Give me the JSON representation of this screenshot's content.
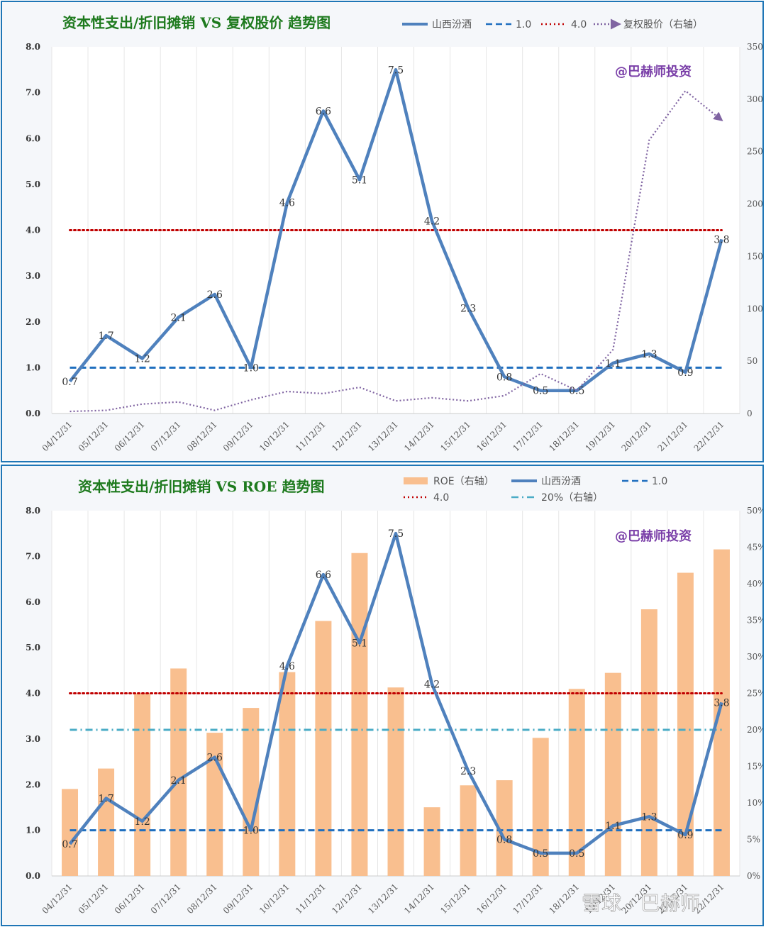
{
  "corner_watermark": "雪球 · 巴赫师",
  "chart_data": [
    {
      "type": "line",
      "title": "资本性支出/折旧摊销 VS 复权股价 趋势图",
      "watermark": "@巴赫师投资",
      "categories": [
        "04/12/31",
        "05/12/31",
        "06/12/31",
        "07/12/31",
        "08/12/31",
        "09/12/31",
        "10/12/31",
        "11/12/31",
        "12/12/31",
        "13/12/31",
        "14/12/31",
        "15/12/31",
        "16/12/31",
        "17/12/31",
        "18/12/31",
        "19/12/31",
        "20/12/31",
        "21/12/31",
        "22/12/31"
      ],
      "ylim": [
        0,
        8
      ],
      "y_ticks": [
        "0.0",
        "1.0",
        "2.0",
        "3.0",
        "4.0",
        "5.0",
        "6.0",
        "7.0",
        "8.0"
      ],
      "y2lim": [
        0,
        350
      ],
      "y2_ticks": [
        "0",
        "50",
        "100",
        "150",
        "200",
        "250",
        "300",
        "350"
      ],
      "grid": "vertical",
      "legend_position": "top",
      "series": [
        {
          "name": "山西汾酒",
          "axis": "left",
          "style": "solid",
          "color": "#4f81bd",
          "values": [
            0.7,
            1.7,
            1.2,
            2.1,
            2.6,
            1.0,
            4.6,
            6.6,
            5.1,
            7.5,
            4.2,
            2.3,
            0.8,
            0.5,
            0.5,
            1.1,
            1.3,
            0.9,
            3.8
          ],
          "labels": [
            "0.7",
            "1.7",
            "1.2",
            "2.1",
            "2.6",
            "1.0",
            "4.6",
            "6.6",
            "5.1",
            "7.5",
            "4.2",
            "2.3",
            "0.8",
            "0.5",
            "0.5",
            "1.1",
            "1.3",
            "0.9",
            "3.8"
          ]
        },
        {
          "name": "1.0",
          "axis": "left",
          "style": "dashed",
          "color": "#1f6fbf",
          "constant": 1.0
        },
        {
          "name": "4.0",
          "axis": "left",
          "style": "dotted",
          "color": "#c00000",
          "constant": 4.0
        },
        {
          "name": "复权股价（右轴）",
          "axis": "right",
          "style": "dotted-arrow",
          "color": "#8064a2",
          "values": [
            2,
            3,
            9,
            11,
            3,
            13,
            21,
            19,
            25,
            12,
            15,
            12,
            17,
            38,
            22,
            61,
            261,
            308,
            280
          ]
        }
      ]
    },
    {
      "type": "bar-line",
      "title": "资本性支出/折旧摊销 VS ROE 趋势图",
      "watermark": "@巴赫师投资",
      "categories": [
        "04/12/31",
        "05/12/31",
        "06/12/31",
        "07/12/31",
        "08/12/31",
        "09/12/31",
        "10/12/31",
        "11/12/31",
        "12/12/31",
        "13/12/31",
        "14/12/31",
        "15/12/31",
        "16/12/31",
        "17/12/31",
        "18/12/31",
        "19/12/31",
        "20/12/31",
        "21/12/31",
        "22/12/31"
      ],
      "ylim": [
        0,
        8
      ],
      "y_ticks": [
        "0.0",
        "1.0",
        "2.0",
        "3.0",
        "4.0",
        "5.0",
        "6.0",
        "7.0",
        "8.0"
      ],
      "y2lim": [
        0,
        50
      ],
      "y2_ticks": [
        "0%",
        "5%",
        "10%",
        "15%",
        "20%",
        "25%",
        "30%",
        "35%",
        "40%",
        "45%",
        "50%"
      ],
      "grid": "vertical",
      "legend_position": "top",
      "bars": {
        "name": "ROE（右轴）",
        "axis": "right",
        "color": "#f9bf8f",
        "values": [
          11.9,
          14.7,
          25.0,
          28.4,
          19.6,
          23.0,
          27.9,
          34.9,
          44.2,
          25.8,
          9.4,
          12.4,
          13.1,
          18.9,
          25.6,
          27.8,
          36.5,
          41.5,
          44.7
        ]
      },
      "series": [
        {
          "name": "山西汾酒",
          "axis": "left",
          "style": "solid",
          "color": "#4f81bd",
          "values": [
            0.7,
            1.7,
            1.2,
            2.1,
            2.6,
            1.0,
            4.6,
            6.6,
            5.1,
            7.5,
            4.2,
            2.3,
            0.8,
            0.5,
            0.5,
            1.1,
            1.3,
            0.9,
            3.8
          ],
          "labels": [
            "0.7",
            "1.7",
            "1.2",
            "2.1",
            "2.6",
            "1.0",
            "4.6",
            "6.6",
            "5.1",
            "7.5",
            "4.2",
            "2.3",
            "0.8",
            "0.5",
            "0.5",
            "1.1",
            "1.3",
            "0.9",
            "3.8"
          ]
        },
        {
          "name": "1.0",
          "axis": "left",
          "style": "dashed",
          "color": "#1f6fbf",
          "constant": 1.0
        },
        {
          "name": "4.0",
          "axis": "left",
          "style": "dotted",
          "color": "#c00000",
          "constant": 4.0
        },
        {
          "name": "20%（右轴）",
          "axis": "right",
          "style": "dashdot",
          "color": "#4bacc6",
          "constant": 20
        }
      ]
    }
  ]
}
